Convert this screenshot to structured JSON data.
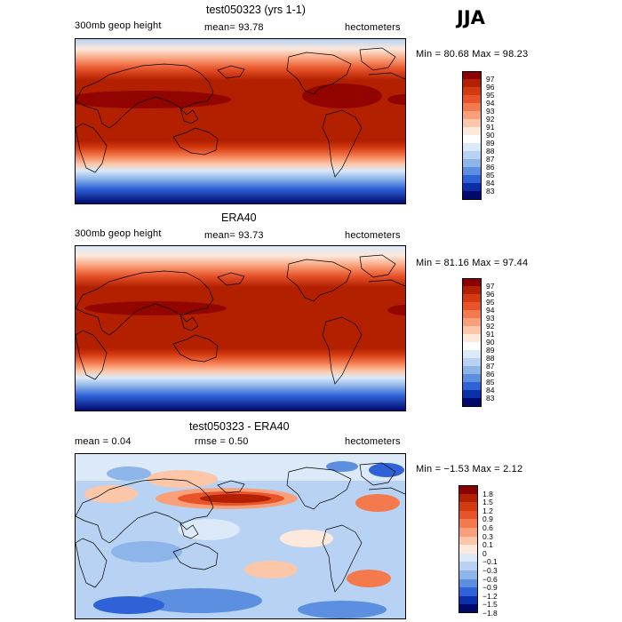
{
  "season": "JJA",
  "panels": [
    {
      "title": "test050323 (yrs 1-1)",
      "left_label": "300mb geop height",
      "center_label": "mean=  93.78",
      "right_label": "hectometers",
      "minmax": "Min =  80.68 Max =  98.23",
      "colorbar_labels": [
        "97",
        "96",
        "95",
        "94",
        "93",
        "92",
        "91",
        "90",
        "89",
        "88",
        "87",
        "86",
        "85",
        "84",
        "83"
      ],
      "colors": [
        "#8b0000",
        "#b22000",
        "#d43a10",
        "#e8542a",
        "#f47a4e",
        "#f9a07a",
        "#fcc6a8",
        "#fde8dc",
        "#ffffff",
        "#dbe9f8",
        "#b7d2f2",
        "#8db5ea",
        "#5c8fe0",
        "#2f62d6",
        "#0b2fa8",
        "#000a6e"
      ]
    },
    {
      "title": "ERA40",
      "left_label": "300mb geop height",
      "center_label": "mean=  93.73",
      "right_label": "hectometers",
      "minmax": "Min =  81.16 Max =  97.44",
      "colorbar_labels": [
        "97",
        "96",
        "95",
        "94",
        "93",
        "92",
        "91",
        "90",
        "89",
        "88",
        "87",
        "86",
        "85",
        "84",
        "83"
      ],
      "colors": [
        "#8b0000",
        "#b22000",
        "#d43a10",
        "#e8542a",
        "#f47a4e",
        "#f9a07a",
        "#fcc6a8",
        "#fde8dc",
        "#ffffff",
        "#dbe9f8",
        "#b7d2f2",
        "#8db5ea",
        "#5c8fe0",
        "#2f62d6",
        "#0b2fa8",
        "#000a6e"
      ]
    },
    {
      "title": "test050323 - ERA40",
      "left_label": "mean =    0.04",
      "center_label": "rmse =    0.50",
      "right_label": "hectometers",
      "minmax": "Min =  −1.53 Max =    2.12",
      "colorbar_labels": [
        "1.8",
        "1.5",
        "1.2",
        "0.9",
        "0.6",
        "0.3",
        "0.1",
        "0",
        "−0.1",
        "−0.3",
        "−0.6",
        "−0.9",
        "−1.2",
        "−1.5",
        "−1.8"
      ],
      "colors": [
        "#8b0000",
        "#b22000",
        "#d43a10",
        "#e8542a",
        "#f47a4e",
        "#f9a07a",
        "#fcc6a8",
        "#fde8dc",
        "#dbe9f8",
        "#b7d2f2",
        "#8db5ea",
        "#5c8fe0",
        "#2f62d6",
        "#0b2fa8",
        "#000a6e"
      ]
    }
  ]
}
